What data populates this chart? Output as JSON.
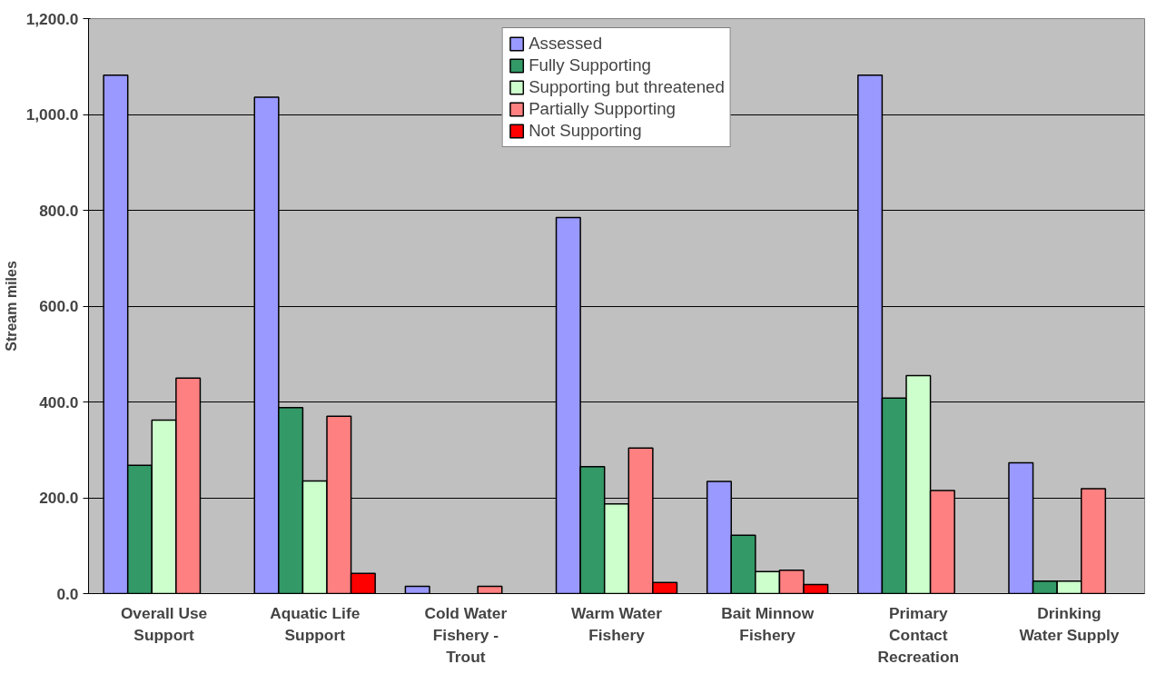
{
  "chart_data": {
    "type": "bar",
    "ylabel": "Stream miles",
    "categories": [
      "Overall Use Support",
      "Aquatic Life Support",
      "Cold Water Fishery - Trout",
      "Warm Water Fishery",
      "Bait Minnow Fishery",
      "Primary Contact Recreation",
      "Drinking Water Supply"
    ],
    "series": [
      {
        "name": "Assessed",
        "color": "#9999ff",
        "values": [
          1082,
          1036,
          15,
          785,
          234,
          1082,
          273
        ]
      },
      {
        "name": "Fully Supporting",
        "color": "#339966",
        "values": [
          268,
          388,
          null,
          265,
          122,
          408,
          26
        ]
      },
      {
        "name": "Supporting but threatened",
        "color": "#ccffcc",
        "values": [
          362,
          235,
          null,
          187,
          46,
          455,
          26
        ]
      },
      {
        "name": "Partially Supporting",
        "color": "#ff8080",
        "values": [
          450,
          370,
          15,
          304,
          49,
          215,
          219
        ]
      },
      {
        "name": "Not Supporting",
        "color": "#ff0000",
        "values": [
          null,
          42,
          null,
          23,
          19,
          null,
          null
        ]
      }
    ],
    "ylim": [
      0,
      1200
    ],
    "yticks": [
      {
        "value": 0,
        "label": "0.0"
      },
      {
        "value": 200,
        "label": "200.0"
      },
      {
        "value": 400,
        "label": "400.0"
      },
      {
        "value": 600,
        "label": "600.0"
      },
      {
        "value": 800,
        "label": "800.0"
      },
      {
        "value": 1000,
        "label": "1,000.0"
      },
      {
        "value": 1200,
        "label": "1,200.0"
      }
    ],
    "grid": "y",
    "legend": "top"
  }
}
